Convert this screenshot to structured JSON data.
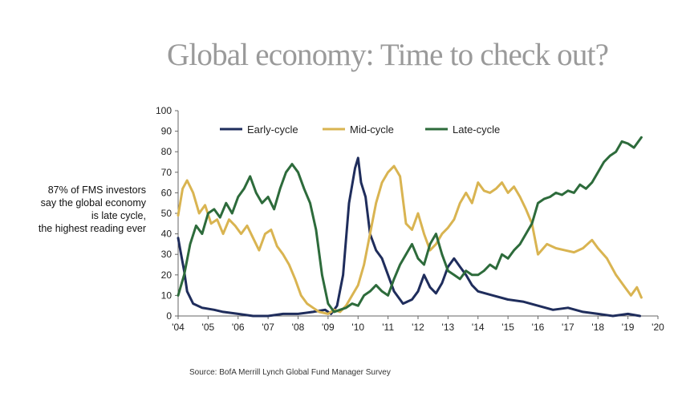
{
  "title": "Global economy: Time to check out?",
  "note": [
    "87% of FMS investors",
    "say the global economy",
    "is late cycle,",
    "the highest reading ever"
  ],
  "source": "Source: BofA Merrill Lynch Global Fund Manager Survey",
  "chart_data": {
    "type": "line",
    "title": "",
    "xlabel": "",
    "ylabel": "",
    "xlim": [
      2004,
      2020
    ],
    "ylim": [
      0,
      100
    ],
    "yticks": [
      0,
      10,
      20,
      30,
      40,
      50,
      60,
      70,
      80,
      90,
      100
    ],
    "xticks": [
      {
        "value": 2004,
        "label": "'04"
      },
      {
        "value": 2005,
        "label": "'05"
      },
      {
        "value": 2006,
        "label": "'06"
      },
      {
        "value": 2007,
        "label": "'07"
      },
      {
        "value": 2008,
        "label": "'08"
      },
      {
        "value": 2009,
        "label": "'09"
      },
      {
        "value": 2010,
        "label": "'10"
      },
      {
        "value": 2011,
        "label": "'11"
      },
      {
        "value": 2012,
        "label": "'12"
      },
      {
        "value": 2013,
        "label": "'13"
      },
      {
        "value": 2014,
        "label": "'14"
      },
      {
        "value": 2015,
        "label": "'15"
      },
      {
        "value": 2016,
        "label": "'16"
      },
      {
        "value": 2017,
        "label": "'17"
      },
      {
        "value": 2018,
        "label": "'18"
      },
      {
        "value": 2019,
        "label": "'19"
      },
      {
        "value": 2020,
        "label": "'20"
      }
    ],
    "grid": false,
    "legend_position": "top",
    "series": [
      {
        "name": "Early-cycle",
        "color": "#1f2d5c",
        "points": [
          [
            2004.0,
            38
          ],
          [
            2004.1,
            30
          ],
          [
            2004.2,
            22
          ],
          [
            2004.3,
            12
          ],
          [
            2004.5,
            6
          ],
          [
            2004.8,
            4
          ],
          [
            2005.2,
            3
          ],
          [
            2005.5,
            2
          ],
          [
            2006.0,
            1
          ],
          [
            2006.5,
            0
          ],
          [
            2007.0,
            0
          ],
          [
            2007.5,
            1
          ],
          [
            2008.0,
            1
          ],
          [
            2008.5,
            2
          ],
          [
            2008.9,
            3
          ],
          [
            2009.1,
            1
          ],
          [
            2009.3,
            5
          ],
          [
            2009.5,
            20
          ],
          [
            2009.7,
            55
          ],
          [
            2009.9,
            72
          ],
          [
            2010.0,
            77
          ],
          [
            2010.1,
            65
          ],
          [
            2010.25,
            58
          ],
          [
            2010.4,
            40
          ],
          [
            2010.6,
            32
          ],
          [
            2010.8,
            28
          ],
          [
            2011.0,
            20
          ],
          [
            2011.2,
            12
          ],
          [
            2011.5,
            6
          ],
          [
            2011.8,
            8
          ],
          [
            2012.0,
            12
          ],
          [
            2012.2,
            20
          ],
          [
            2012.4,
            14
          ],
          [
            2012.6,
            11
          ],
          [
            2012.8,
            16
          ],
          [
            2013.0,
            24
          ],
          [
            2013.2,
            28
          ],
          [
            2013.4,
            24
          ],
          [
            2013.6,
            20
          ],
          [
            2013.8,
            15
          ],
          [
            2014.0,
            12
          ],
          [
            2014.5,
            10
          ],
          [
            2015.0,
            8
          ],
          [
            2015.5,
            7
          ],
          [
            2016.0,
            5
          ],
          [
            2016.5,
            3
          ],
          [
            2017.0,
            4
          ],
          [
            2017.5,
            2
          ],
          [
            2018.0,
            1
          ],
          [
            2018.5,
            0
          ],
          [
            2019.0,
            1
          ],
          [
            2019.4,
            0
          ]
        ]
      },
      {
        "name": "Mid-cycle",
        "color": "#d9b451",
        "points": [
          [
            2004.0,
            49
          ],
          [
            2004.15,
            62
          ],
          [
            2004.3,
            66
          ],
          [
            2004.5,
            60
          ],
          [
            2004.7,
            50
          ],
          [
            2004.9,
            54
          ],
          [
            2005.1,
            45
          ],
          [
            2005.3,
            47
          ],
          [
            2005.5,
            40
          ],
          [
            2005.7,
            47
          ],
          [
            2005.9,
            44
          ],
          [
            2006.1,
            40
          ],
          [
            2006.3,
            44
          ],
          [
            2006.5,
            38
          ],
          [
            2006.7,
            32
          ],
          [
            2006.9,
            40
          ],
          [
            2007.1,
            42
          ],
          [
            2007.3,
            34
          ],
          [
            2007.5,
            30
          ],
          [
            2007.7,
            25
          ],
          [
            2007.9,
            18
          ],
          [
            2008.1,
            10
          ],
          [
            2008.3,
            6
          ],
          [
            2008.5,
            4
          ],
          [
            2008.7,
            2
          ],
          [
            2009.0,
            1
          ],
          [
            2009.2,
            3
          ],
          [
            2009.4,
            2
          ],
          [
            2009.6,
            5
          ],
          [
            2009.8,
            10
          ],
          [
            2010.0,
            15
          ],
          [
            2010.2,
            25
          ],
          [
            2010.4,
            40
          ],
          [
            2010.6,
            55
          ],
          [
            2010.8,
            65
          ],
          [
            2011.0,
            70
          ],
          [
            2011.2,
            73
          ],
          [
            2011.4,
            68
          ],
          [
            2011.6,
            45
          ],
          [
            2011.8,
            42
          ],
          [
            2012.0,
            50
          ],
          [
            2012.2,
            40
          ],
          [
            2012.4,
            32
          ],
          [
            2012.6,
            35
          ],
          [
            2012.8,
            40
          ],
          [
            2013.0,
            43
          ],
          [
            2013.2,
            47
          ],
          [
            2013.4,
            55
          ],
          [
            2013.6,
            60
          ],
          [
            2013.8,
            55
          ],
          [
            2014.0,
            65
          ],
          [
            2014.2,
            61
          ],
          [
            2014.4,
            60
          ],
          [
            2014.6,
            62
          ],
          [
            2014.8,
            65
          ],
          [
            2015.0,
            60
          ],
          [
            2015.2,
            63
          ],
          [
            2015.4,
            58
          ],
          [
            2015.6,
            52
          ],
          [
            2015.8,
            45
          ],
          [
            2016.0,
            30
          ],
          [
            2016.3,
            35
          ],
          [
            2016.6,
            33
          ],
          [
            2016.9,
            32
          ],
          [
            2017.2,
            31
          ],
          [
            2017.5,
            33
          ],
          [
            2017.8,
            37
          ],
          [
            2018.0,
            33
          ],
          [
            2018.3,
            28
          ],
          [
            2018.6,
            20
          ],
          [
            2018.9,
            14
          ],
          [
            2019.1,
            10
          ],
          [
            2019.3,
            14
          ],
          [
            2019.45,
            9
          ]
        ]
      },
      {
        "name": "Late-cycle",
        "color": "#2d6b3b",
        "points": [
          [
            2004.0,
            10
          ],
          [
            2004.2,
            20
          ],
          [
            2004.4,
            35
          ],
          [
            2004.6,
            44
          ],
          [
            2004.8,
            40
          ],
          [
            2005.0,
            50
          ],
          [
            2005.2,
            52
          ],
          [
            2005.4,
            48
          ],
          [
            2005.6,
            55
          ],
          [
            2005.8,
            50
          ],
          [
            2006.0,
            58
          ],
          [
            2006.2,
            62
          ],
          [
            2006.4,
            68
          ],
          [
            2006.6,
            60
          ],
          [
            2006.8,
            55
          ],
          [
            2007.0,
            58
          ],
          [
            2007.2,
            52
          ],
          [
            2007.4,
            62
          ],
          [
            2007.6,
            70
          ],
          [
            2007.8,
            74
          ],
          [
            2008.0,
            70
          ],
          [
            2008.2,
            62
          ],
          [
            2008.4,
            55
          ],
          [
            2008.6,
            42
          ],
          [
            2008.8,
            20
          ],
          [
            2009.0,
            6
          ],
          [
            2009.2,
            2
          ],
          [
            2009.4,
            3
          ],
          [
            2009.6,
            4
          ],
          [
            2009.8,
            6
          ],
          [
            2010.0,
            5
          ],
          [
            2010.2,
            10
          ],
          [
            2010.4,
            12
          ],
          [
            2010.6,
            15
          ],
          [
            2010.8,
            12
          ],
          [
            2011.0,
            10
          ],
          [
            2011.2,
            18
          ],
          [
            2011.4,
            25
          ],
          [
            2011.6,
            30
          ],
          [
            2011.8,
            35
          ],
          [
            2012.0,
            28
          ],
          [
            2012.2,
            25
          ],
          [
            2012.4,
            35
          ],
          [
            2012.6,
            40
          ],
          [
            2012.8,
            30
          ],
          [
            2013.0,
            22
          ],
          [
            2013.2,
            20
          ],
          [
            2013.4,
            18
          ],
          [
            2013.6,
            22
          ],
          [
            2013.8,
            20
          ],
          [
            2014.0,
            20
          ],
          [
            2014.2,
            22
          ],
          [
            2014.4,
            25
          ],
          [
            2014.6,
            23
          ],
          [
            2014.8,
            30
          ],
          [
            2015.0,
            28
          ],
          [
            2015.2,
            32
          ],
          [
            2015.4,
            35
          ],
          [
            2015.6,
            40
          ],
          [
            2015.8,
            45
          ],
          [
            2016.0,
            55
          ],
          [
            2016.2,
            57
          ],
          [
            2016.4,
            58
          ],
          [
            2016.6,
            60
          ],
          [
            2016.8,
            59
          ],
          [
            2017.0,
            61
          ],
          [
            2017.2,
            60
          ],
          [
            2017.4,
            64
          ],
          [
            2017.6,
            62
          ],
          [
            2017.8,
            65
          ],
          [
            2018.0,
            70
          ],
          [
            2018.2,
            75
          ],
          [
            2018.4,
            78
          ],
          [
            2018.6,
            80
          ],
          [
            2018.8,
            85
          ],
          [
            2019.0,
            84
          ],
          [
            2019.2,
            82
          ],
          [
            2019.35,
            85
          ],
          [
            2019.45,
            87
          ]
        ]
      }
    ]
  }
}
